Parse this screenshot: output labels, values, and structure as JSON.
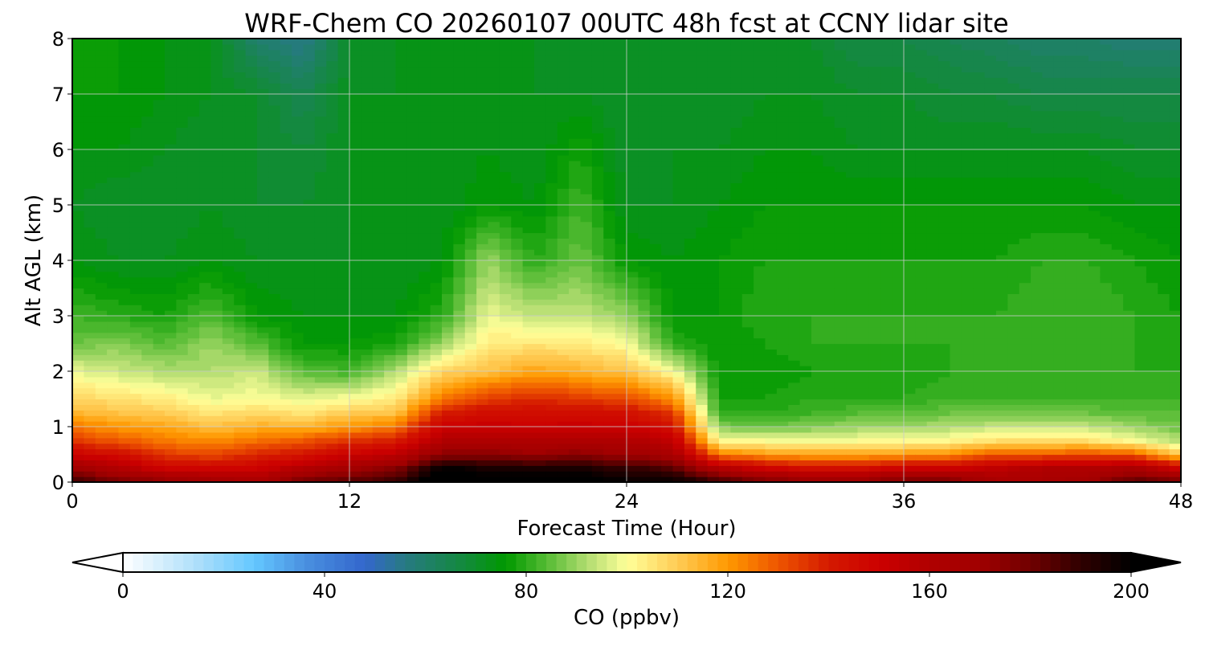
{
  "chart_data": {
    "type": "heatmap",
    "title": "WRF-Chem CO  20260107 00UTC 48h fcst at CCNY lidar site",
    "xlabel": "Forecast Time (Hour)",
    "ylabel": "Alt AGL (km)",
    "xlim": [
      0,
      48
    ],
    "ylim": [
      0,
      8
    ],
    "xticks": [
      "0",
      "12",
      "24",
      "36",
      "48"
    ],
    "yticks": [
      "0",
      "1",
      "2",
      "3",
      "4",
      "5",
      "6",
      "7",
      "8"
    ],
    "grid": true,
    "x": [
      0,
      2,
      4,
      6,
      8,
      10,
      12,
      14,
      16,
      18,
      20,
      22,
      24,
      26,
      28,
      30,
      32,
      34,
      36,
      38,
      40,
      42,
      44,
      46,
      48
    ],
    "y": [
      0,
      0.25,
      0.5,
      0.75,
      1,
      1.25,
      1.5,
      2,
      2.5,
      3,
      4,
      5,
      6,
      7,
      8
    ],
    "z": [
      [
        190,
        170,
        150,
        135,
        125,
        115,
        108,
        98,
        86,
        82,
        74,
        72,
        74,
        76,
        76
      ],
      [
        180,
        160,
        145,
        130,
        120,
        112,
        106,
        95,
        88,
        80,
        72,
        70,
        74,
        76,
        76
      ],
      [
        175,
        150,
        135,
        125,
        118,
        110,
        104,
        92,
        84,
        78,
        72,
        70,
        72,
        74,
        74
      ],
      [
        170,
        148,
        132,
        122,
        112,
        105,
        98,
        92,
        90,
        84,
        74,
        72,
        70,
        72,
        72
      ],
      [
        165,
        150,
        138,
        126,
        116,
        108,
        100,
        95,
        84,
        76,
        72,
        70,
        70,
        70,
        60
      ],
      [
        180,
        160,
        142,
        130,
        115,
        105,
        98,
        84,
        76,
        74,
        72,
        70,
        68,
        64,
        55
      ],
      [
        185,
        168,
        150,
        136,
        120,
        110,
        100,
        82,
        76,
        74,
        72,
        72,
        72,
        72,
        70
      ],
      [
        190,
        175,
        155,
        140,
        125,
        112,
        104,
        92,
        78,
        74,
        72,
        72,
        72,
        72,
        72
      ],
      [
        210,
        200,
        175,
        160,
        150,
        140,
        125,
        108,
        90,
        80,
        74,
        72,
        72,
        74,
        74
      ],
      [
        205,
        195,
        175,
        162,
        152,
        145,
        135,
        112,
        104,
        98,
        90,
        76,
        74,
        74,
        72
      ],
      [
        205,
        195,
        172,
        160,
        150,
        145,
        138,
        118,
        105,
        94,
        80,
        74,
        72,
        72,
        72
      ],
      [
        205,
        195,
        175,
        162,
        152,
        145,
        135,
        115,
        104,
        94,
        86,
        82,
        78,
        72,
        70
      ],
      [
        200,
        190,
        170,
        160,
        150,
        144,
        132,
        112,
        100,
        90,
        76,
        72,
        70,
        70,
        70
      ],
      [
        200,
        185,
        165,
        155,
        145,
        135,
        122,
        100,
        80,
        76,
        74,
        72,
        72,
        72,
        72
      ],
      [
        190,
        160,
        125,
        100,
        88,
        80,
        78,
        76,
        76,
        76,
        76,
        74,
        72,
        70,
        70
      ],
      [
        180,
        150,
        120,
        100,
        86,
        80,
        78,
        76,
        78,
        80,
        78,
        76,
        74,
        72,
        70
      ],
      [
        175,
        145,
        118,
        98,
        88,
        82,
        80,
        78,
        80,
        80,
        78,
        76,
        74,
        72,
        70
      ],
      [
        175,
        145,
        118,
        100,
        90,
        84,
        80,
        78,
        80,
        80,
        78,
        76,
        72,
        70,
        66
      ],
      [
        180,
        150,
        120,
        100,
        90,
        84,
        80,
        78,
        80,
        80,
        78,
        76,
        72,
        70,
        66
      ],
      [
        180,
        150,
        122,
        102,
        92,
        86,
        82,
        80,
        80,
        80,
        78,
        76,
        72,
        68,
        64
      ],
      [
        165,
        155,
        130,
        106,
        94,
        86,
        82,
        80,
        80,
        80,
        78,
        76,
        72,
        68,
        62
      ],
      [
        165,
        160,
        130,
        106,
        94,
        86,
        82,
        80,
        80,
        82,
        80,
        76,
        72,
        66,
        60
      ],
      [
        170,
        160,
        132,
        106,
        94,
        86,
        82,
        80,
        80,
        82,
        80,
        76,
        72,
        66,
        60
      ],
      [
        185,
        165,
        130,
        100,
        90,
        84,
        82,
        80,
        80,
        80,
        78,
        74,
        70,
        66,
        58
      ],
      [
        180,
        150,
        110,
        92,
        86,
        84,
        82,
        80,
        78,
        78,
        76,
        74,
        70,
        66,
        58
      ]
    ],
    "colorbar": {
      "label": "CO  (ppbv)",
      "range": [
        0,
        200
      ],
      "step": 2,
      "ticks": [
        "0",
        "40",
        "80",
        "120",
        "160",
        "200"
      ],
      "extend": "both"
    },
    "colormap_stops": [
      [
        0,
        "#ffffff"
      ],
      [
        16,
        "#a6dcfa"
      ],
      [
        26,
        "#64c8ff"
      ],
      [
        36,
        "#4a90e0"
      ],
      [
        48,
        "#3366cc"
      ],
      [
        56,
        "#277a82"
      ],
      [
        68,
        "#128a3a"
      ],
      [
        76,
        "#009900"
      ],
      [
        84,
        "#55bb33"
      ],
      [
        92,
        "#b0dc70"
      ],
      [
        100,
        "#ffff99"
      ],
      [
        110,
        "#ffcc55"
      ],
      [
        120,
        "#ff9900"
      ],
      [
        130,
        "#ee5500"
      ],
      [
        140,
        "#d41a00"
      ],
      [
        150,
        "#cc0000"
      ],
      [
        160,
        "#b00000"
      ],
      [
        170,
        "#a00000"
      ],
      [
        180,
        "#700000"
      ],
      [
        190,
        "#300000"
      ],
      [
        200,
        "#000000"
      ]
    ]
  }
}
